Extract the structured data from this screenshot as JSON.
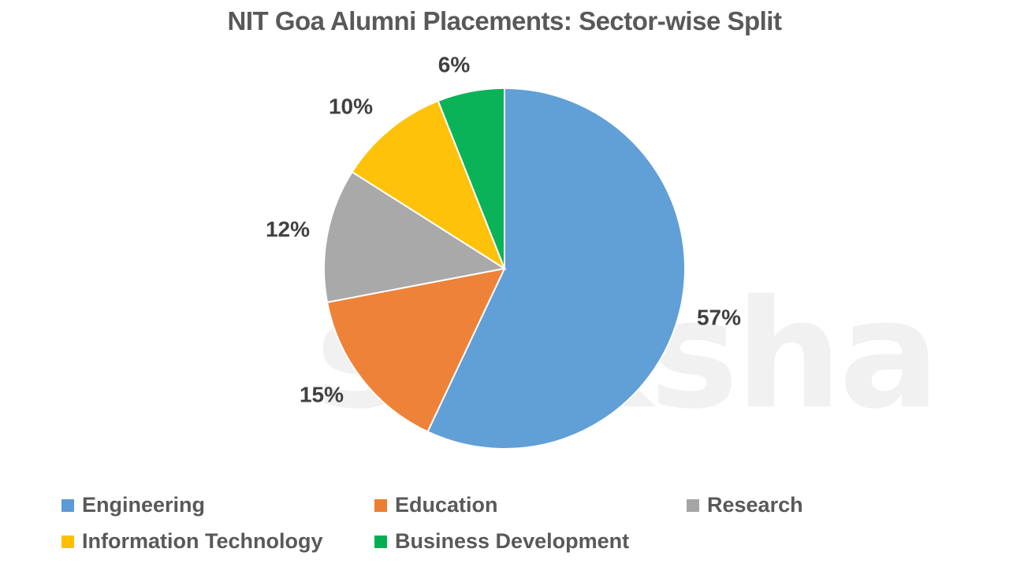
{
  "chart_data": {
    "type": "pie",
    "title": "NIT Goa Alumni Placements: Sector-wise Split",
    "categories": [
      "Engineering",
      "Education",
      "Research",
      "Information Technology",
      "Business Development"
    ],
    "values": [
      57,
      15,
      12,
      10,
      6
    ],
    "labels": [
      "57%",
      "15%",
      "12%",
      "10%",
      "6%"
    ],
    "colors": [
      "#5B9BD5",
      "#ED7D31",
      "#A5A5A5",
      "#FFC000",
      "#00B050"
    ],
    "start_angle": "12 o'clock, clockwise",
    "legend_position": "bottom"
  },
  "watermark": "shiksha",
  "legend": [
    {
      "label": "Engineering",
      "color": "#5B9BD5"
    },
    {
      "label": "Education",
      "color": "#ED7D31"
    },
    {
      "label": "Research",
      "color": "#A5A5A5"
    },
    {
      "label": "Information Technology",
      "color": "#FFC000"
    },
    {
      "label": "Business Development",
      "color": "#00B050"
    }
  ]
}
